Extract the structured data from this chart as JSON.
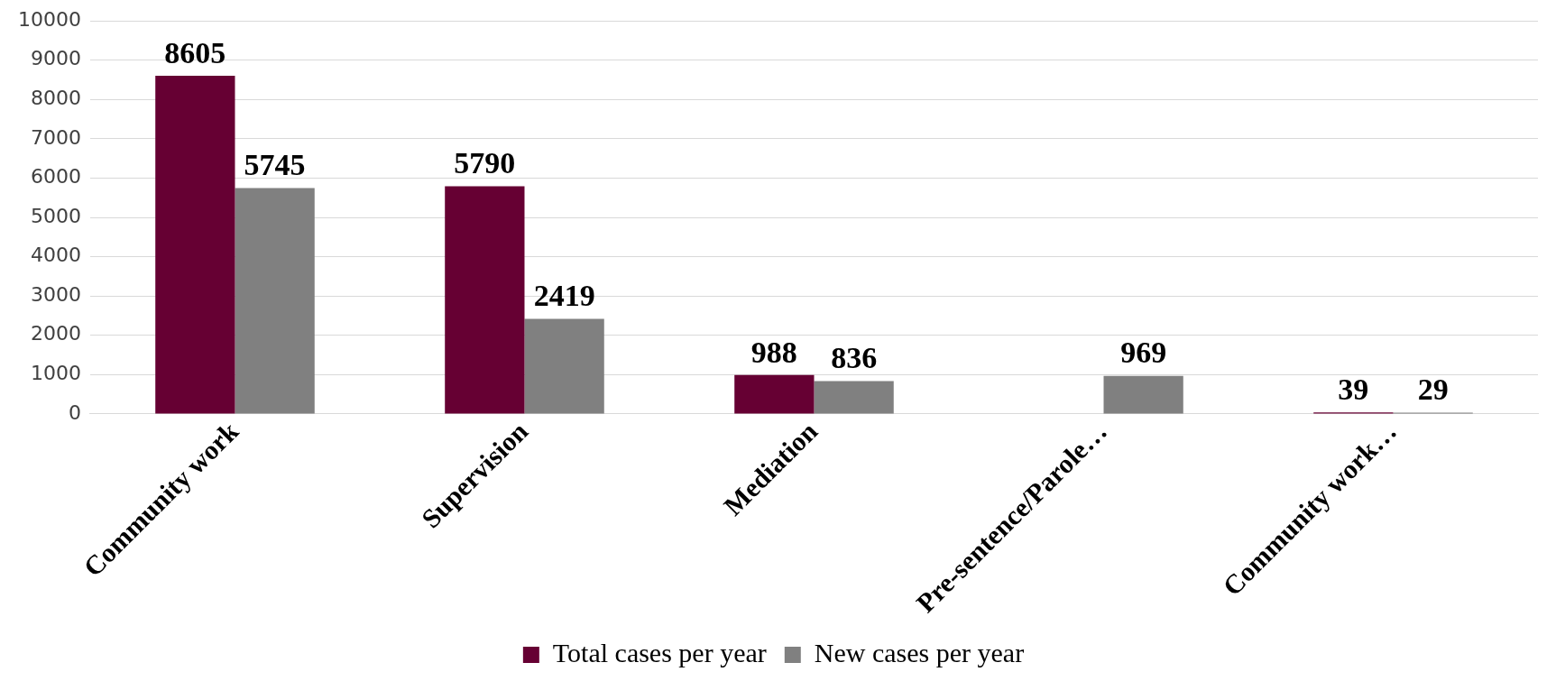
{
  "chart_data": {
    "type": "bar",
    "categories": [
      "Community work",
      "Supervision",
      "Mediation",
      "Pre-sentence/Parole…",
      "Community work…"
    ],
    "series": [
      {
        "name": "Total cases per year",
        "color": "#660033",
        "values": [
          8605,
          5790,
          988,
          null,
          39
        ]
      },
      {
        "name": "New cases per year",
        "color": "#808080",
        "values": [
          5745,
          2419,
          836,
          969,
          29
        ]
      }
    ],
    "ylim": [
      0,
      10000
    ],
    "yticks": [
      0,
      1000,
      2000,
      3000,
      4000,
      5000,
      6000,
      7000,
      8000,
      9000,
      10000
    ],
    "grid": "y",
    "legend": "bottom",
    "data_labels": true
  }
}
